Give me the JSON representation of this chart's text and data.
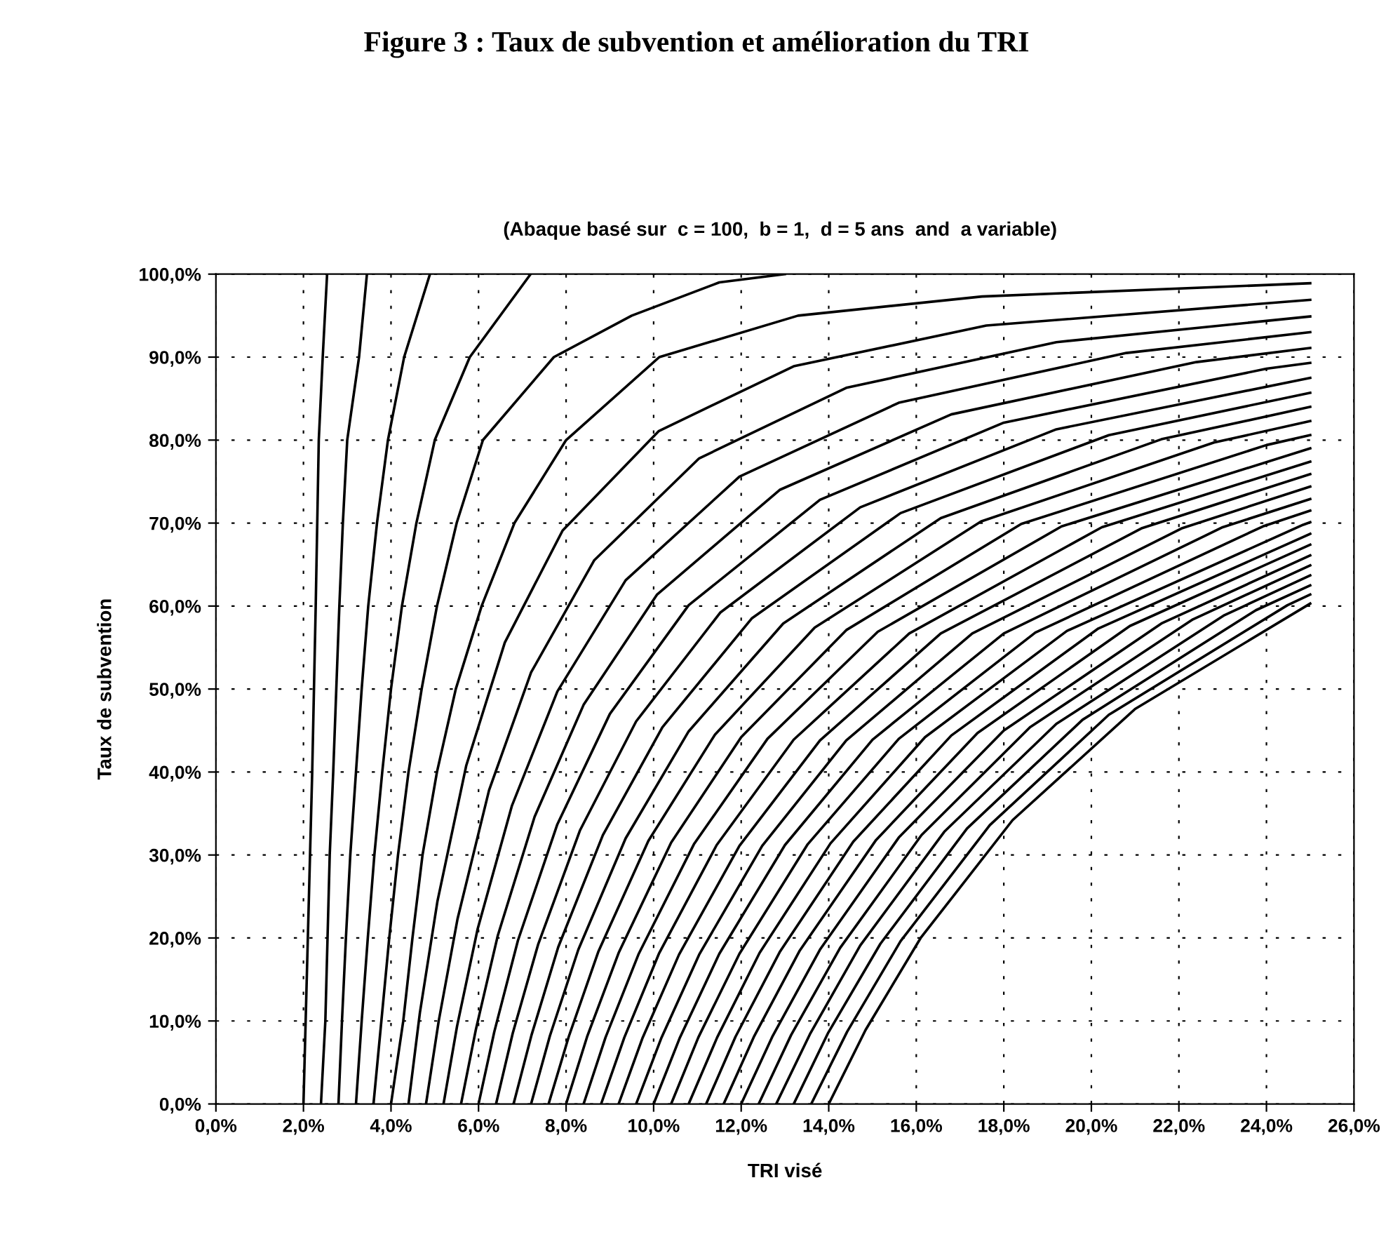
{
  "chart_data": {
    "type": "line",
    "title": "Figure 3 : Taux de subvention et amélioration du TRI",
    "subtitle": "(Abaque basé sur  c = 100,  b = 1,  d = 5 ans  and  a variable)",
    "xlabel": "TRI visé",
    "ylabel": "Taux de subvention",
    "xlim": [
      0,
      26
    ],
    "ylim": [
      0,
      100
    ],
    "xticks": [
      {
        "value": 0,
        "label": "0,0%"
      },
      {
        "value": 2,
        "label": "2,0%"
      },
      {
        "value": 4,
        "label": "4,0%"
      },
      {
        "value": 6,
        "label": "6,0%"
      },
      {
        "value": 8,
        "label": "8,0%"
      },
      {
        "value": 10,
        "label": "10,0%"
      },
      {
        "value": 12,
        "label": "12,0%"
      },
      {
        "value": 14,
        "label": "14,0%"
      },
      {
        "value": 16,
        "label": "16,0%"
      },
      {
        "value": 18,
        "label": "18,0%"
      },
      {
        "value": 20,
        "label": "20,0%"
      },
      {
        "value": 22,
        "label": "22,0%"
      },
      {
        "value": 24,
        "label": "24,0%"
      },
      {
        "value": 26,
        "label": "26,0%"
      }
    ],
    "yticks": [
      {
        "value": 0,
        "label": "0,0%"
      },
      {
        "value": 10,
        "label": "10,0%"
      },
      {
        "value": 20,
        "label": "20,0%"
      },
      {
        "value": 30,
        "label": "30,0%"
      },
      {
        "value": 40,
        "label": "40,0%"
      },
      {
        "value": 50,
        "label": "50,0%"
      },
      {
        "value": 60,
        "label": "60,0%"
      },
      {
        "value": 70,
        "label": "70,0%"
      },
      {
        "value": 80,
        "label": "80,0%"
      },
      {
        "value": 90,
        "label": "90,0%"
      },
      {
        "value": 100,
        "label": "100,0%"
      }
    ],
    "grid": true,
    "line_style": "solid",
    "marker": "none",
    "series": [
      {
        "color": "#000000",
        "x": [
          2.0,
          2.1,
          2.2,
          2.28,
          2.35,
          2.44,
          2.54
        ],
        "values": [
          0,
          20,
          40,
          60,
          80,
          90,
          100
        ]
      },
      {
        "color": "#000000",
        "x": [
          2.4,
          2.5,
          2.55,
          2.6,
          2.68,
          2.75,
          2.82,
          2.9,
          3.0,
          3.27,
          3.45
        ],
        "values": [
          0,
          10,
          20,
          30,
          40,
          50,
          60,
          70,
          80,
          90,
          100
        ]
      },
      {
        "color": "#000000",
        "x": [
          2.8,
          2.88,
          2.97,
          3.07,
          3.2,
          3.33,
          3.48,
          3.68,
          3.93,
          4.3,
          4.89
        ],
        "values": [
          0,
          10,
          20,
          30,
          40,
          50,
          60,
          70,
          80,
          90,
          100
        ]
      },
      {
        "color": "#000000",
        "x": [
          3.2,
          3.33,
          3.47,
          3.62,
          3.8,
          4.0,
          4.25,
          4.58,
          5.0,
          5.8,
          7.19
        ],
        "values": [
          0,
          10,
          20,
          30,
          40,
          50,
          60,
          70,
          80,
          90,
          100
        ]
      },
      {
        "color": "#000000",
        "x": [
          3.6,
          3.78,
          3.96,
          4.16,
          4.4,
          4.7,
          5.05,
          5.5,
          6.1,
          7.72,
          9.5,
          11.5,
          13.0
        ],
        "values": [
          0,
          10,
          20,
          30,
          40,
          50,
          60,
          70,
          80,
          90,
          95,
          99,
          100
        ]
      },
      {
        "color": "#000000",
        "x": [
          4.0,
          4.28,
          4.49,
          4.72,
          5.05,
          5.48,
          6.07,
          6.82,
          8.0,
          10.13,
          13.3,
          17.5,
          25
        ],
        "values": [
          0,
          10,
          20,
          30,
          40,
          50,
          60,
          70,
          80,
          90,
          95,
          97.3,
          98.9
        ]
      },
      {
        "color": "#000000",
        "x": [
          4.4,
          4.66,
          5.06,
          5.72,
          6.6,
          7.92,
          10.12,
          13.2,
          17.6,
          25
        ],
        "values": [
          0,
          11.0,
          24.4,
          40.8,
          55.6,
          69.1,
          81.1,
          88.9,
          93.8,
          96.9
        ]
      },
      {
        "color": "#000000",
        "x": [
          4.8,
          5.09,
          5.52,
          6.24,
          7.2,
          8.64,
          11.04,
          14.4,
          19.2,
          25
        ],
        "values": [
          0,
          10.0,
          22.3,
          37.8,
          52.0,
          65.5,
          77.8,
          86.3,
          91.8,
          94.9
        ]
      },
      {
        "color": "#000000",
        "x": [
          5.2,
          5.51,
          5.98,
          6.76,
          7.8,
          9.36,
          11.96,
          15.6,
          20.8,
          25
        ],
        "values": [
          0,
          9.4,
          21.1,
          35.9,
          49.7,
          63.1,
          75.6,
          84.5,
          90.5,
          93.0
        ]
      },
      {
        "color": "#000000",
        "x": [
          5.6,
          5.94,
          6.44,
          7.28,
          8.4,
          10.08,
          12.88,
          16.8,
          22.4,
          25
        ],
        "values": [
          0,
          9.0,
          20.3,
          34.6,
          48.1,
          61.4,
          74.0,
          83.1,
          89.4,
          91.1
        ]
      },
      {
        "color": "#000000",
        "x": [
          6.0,
          6.36,
          6.9,
          7.8,
          9.0,
          10.8,
          13.8,
          18.0,
          24.0,
          25
        ],
        "values": [
          0,
          8.7,
          19.7,
          33.7,
          47.0,
          60.1,
          72.8,
          82.1,
          88.6,
          89.3
        ]
      },
      {
        "color": "#000000",
        "x": [
          6.4,
          6.78,
          7.36,
          8.32,
          9.6,
          11.52,
          14.72,
          19.2,
          25
        ],
        "values": [
          0,
          8.5,
          19.2,
          33.0,
          46.1,
          59.2,
          71.9,
          81.3,
          87.5
        ]
      },
      {
        "color": "#000000",
        "x": [
          6.8,
          7.21,
          7.82,
          8.84,
          10.2,
          12.24,
          15.64,
          20.4,
          25
        ],
        "values": [
          0,
          8.3,
          18.9,
          32.4,
          45.4,
          58.5,
          71.2,
          80.6,
          85.7
        ]
      },
      {
        "color": "#000000",
        "x": [
          7.2,
          7.63,
          8.28,
          9.36,
          10.8,
          12.96,
          16.56,
          21.6,
          25
        ],
        "values": [
          0,
          8.2,
          18.6,
          32.0,
          44.9,
          57.9,
          70.6,
          80.1,
          84.0
        ]
      },
      {
        "color": "#000000",
        "x": [
          7.6,
          8.06,
          8.74,
          9.88,
          11.4,
          13.68,
          17.48,
          22.8,
          25
        ],
        "values": [
          0,
          8.1,
          18.4,
          31.7,
          44.5,
          57.4,
          70.2,
          79.7,
          82.3
        ]
      },
      {
        "color": "#000000",
        "x": [
          8.0,
          8.48,
          9.2,
          10.4,
          12.0,
          14.4,
          18.4,
          24.0,
          25
        ],
        "values": [
          0,
          8.1,
          18.2,
          31.5,
          44.2,
          57.1,
          69.9,
          79.4,
          80.6
        ]
      },
      {
        "color": "#000000",
        "x": [
          8.4,
          8.9,
          9.66,
          10.92,
          12.6,
          15.12,
          19.32,
          25
        ],
        "values": [
          0,
          8.0,
          18.1,
          31.3,
          44.0,
          56.9,
          69.6,
          79.0
        ]
      },
      {
        "color": "#000000",
        "x": [
          8.8,
          9.33,
          10.12,
          11.44,
          13.2,
          15.84,
          20.24,
          25
        ],
        "values": [
          0,
          8.0,
          18.1,
          31.2,
          43.9,
          56.7,
          69.5,
          77.4
        ]
      },
      {
        "color": "#000000",
        "x": [
          9.2,
          9.75,
          10.58,
          11.96,
          13.8,
          16.56,
          21.16,
          25
        ],
        "values": [
          0,
          8.0,
          18.0,
          31.1,
          43.8,
          56.7,
          69.4,
          75.9
        ]
      },
      {
        "color": "#000000",
        "x": [
          9.6,
          10.18,
          11.04,
          12.48,
          14.4,
          17.28,
          22.08,
          25
        ],
        "values": [
          0,
          8.0,
          18.0,
          31.1,
          43.8,
          56.7,
          69.4,
          74.4
        ]
      },
      {
        "color": "#000000",
        "x": [
          10.0,
          10.6,
          11.5,
          13.0,
          15.0,
          18.0,
          23.0,
          25
        ],
        "values": [
          0,
          8.0,
          18.1,
          31.2,
          43.9,
          56.7,
          69.5,
          72.9
        ]
      },
      {
        "color": "#000000",
        "x": [
          10.4,
          11.02,
          11.96,
          13.52,
          15.6,
          18.72,
          23.92,
          25
        ],
        "values": [
          0,
          8.0,
          18.1,
          31.3,
          44.0,
          56.8,
          69.6,
          71.5
        ]
      },
      {
        "color": "#000000",
        "x": [
          10.8,
          11.45,
          12.42,
          14.04,
          16.2,
          19.44,
          24.84,
          25
        ],
        "values": [
          0,
          8.0,
          18.2,
          31.4,
          44.2,
          57.0,
          69.8,
          70.1
        ]
      },
      {
        "color": "#000000",
        "x": [
          11.2,
          11.87,
          12.88,
          14.56,
          16.8,
          20.16,
          25
        ],
        "values": [
          0,
          8.1,
          18.3,
          31.6,
          44.4,
          57.3,
          68.7
        ]
      },
      {
        "color": "#000000",
        "x": [
          11.6,
          12.3,
          13.34,
          15.08,
          17.4,
          20.88,
          25
        ],
        "values": [
          0,
          8.2,
          18.5,
          31.8,
          44.7,
          57.6,
          67.4
        ]
      },
      {
        "color": "#000000",
        "x": [
          12.0,
          12.72,
          13.8,
          15.6,
          18.0,
          21.6,
          25
        ],
        "values": [
          0,
          8.2,
          18.6,
          32.1,
          45.0,
          57.9,
          66.1
        ]
      },
      {
        "color": "#000000",
        "x": [
          12.4,
          13.14,
          14.26,
          16.12,
          18.6,
          22.32,
          25
        ],
        "values": [
          0,
          8.3,
          18.8,
          32.4,
          45.4,
          58.4,
          64.9
        ]
      },
      {
        "color": "#000000",
        "x": [
          12.8,
          13.57,
          14.72,
          16.64,
          19.2,
          23.04,
          25
        ],
        "values": [
          0,
          8.4,
          19.1,
          32.8,
          45.8,
          58.9,
          63.7
        ]
      },
      {
        "color": "#000000",
        "x": [
          13.2,
          13.99,
          15.18,
          17.16,
          19.8,
          23.76,
          25
        ],
        "values": [
          0,
          8.6,
          19.3,
          33.2,
          46.3,
          59.5,
          62.5
        ]
      },
      {
        "color": "#000000",
        "x": [
          13.6,
          14.42,
          15.64,
          17.68,
          20.4,
          24.48,
          25
        ],
        "values": [
          0,
          8.7,
          19.6,
          33.6,
          46.9,
          60.1,
          61.4
        ]
      },
      {
        "color": "#000000",
        "x": [
          14.0,
          14.84,
          16.1,
          18.2,
          21.0,
          25
        ],
        "values": [
          0,
          8.9,
          20.0,
          34.2,
          47.6,
          60.3
        ]
      }
    ]
  }
}
